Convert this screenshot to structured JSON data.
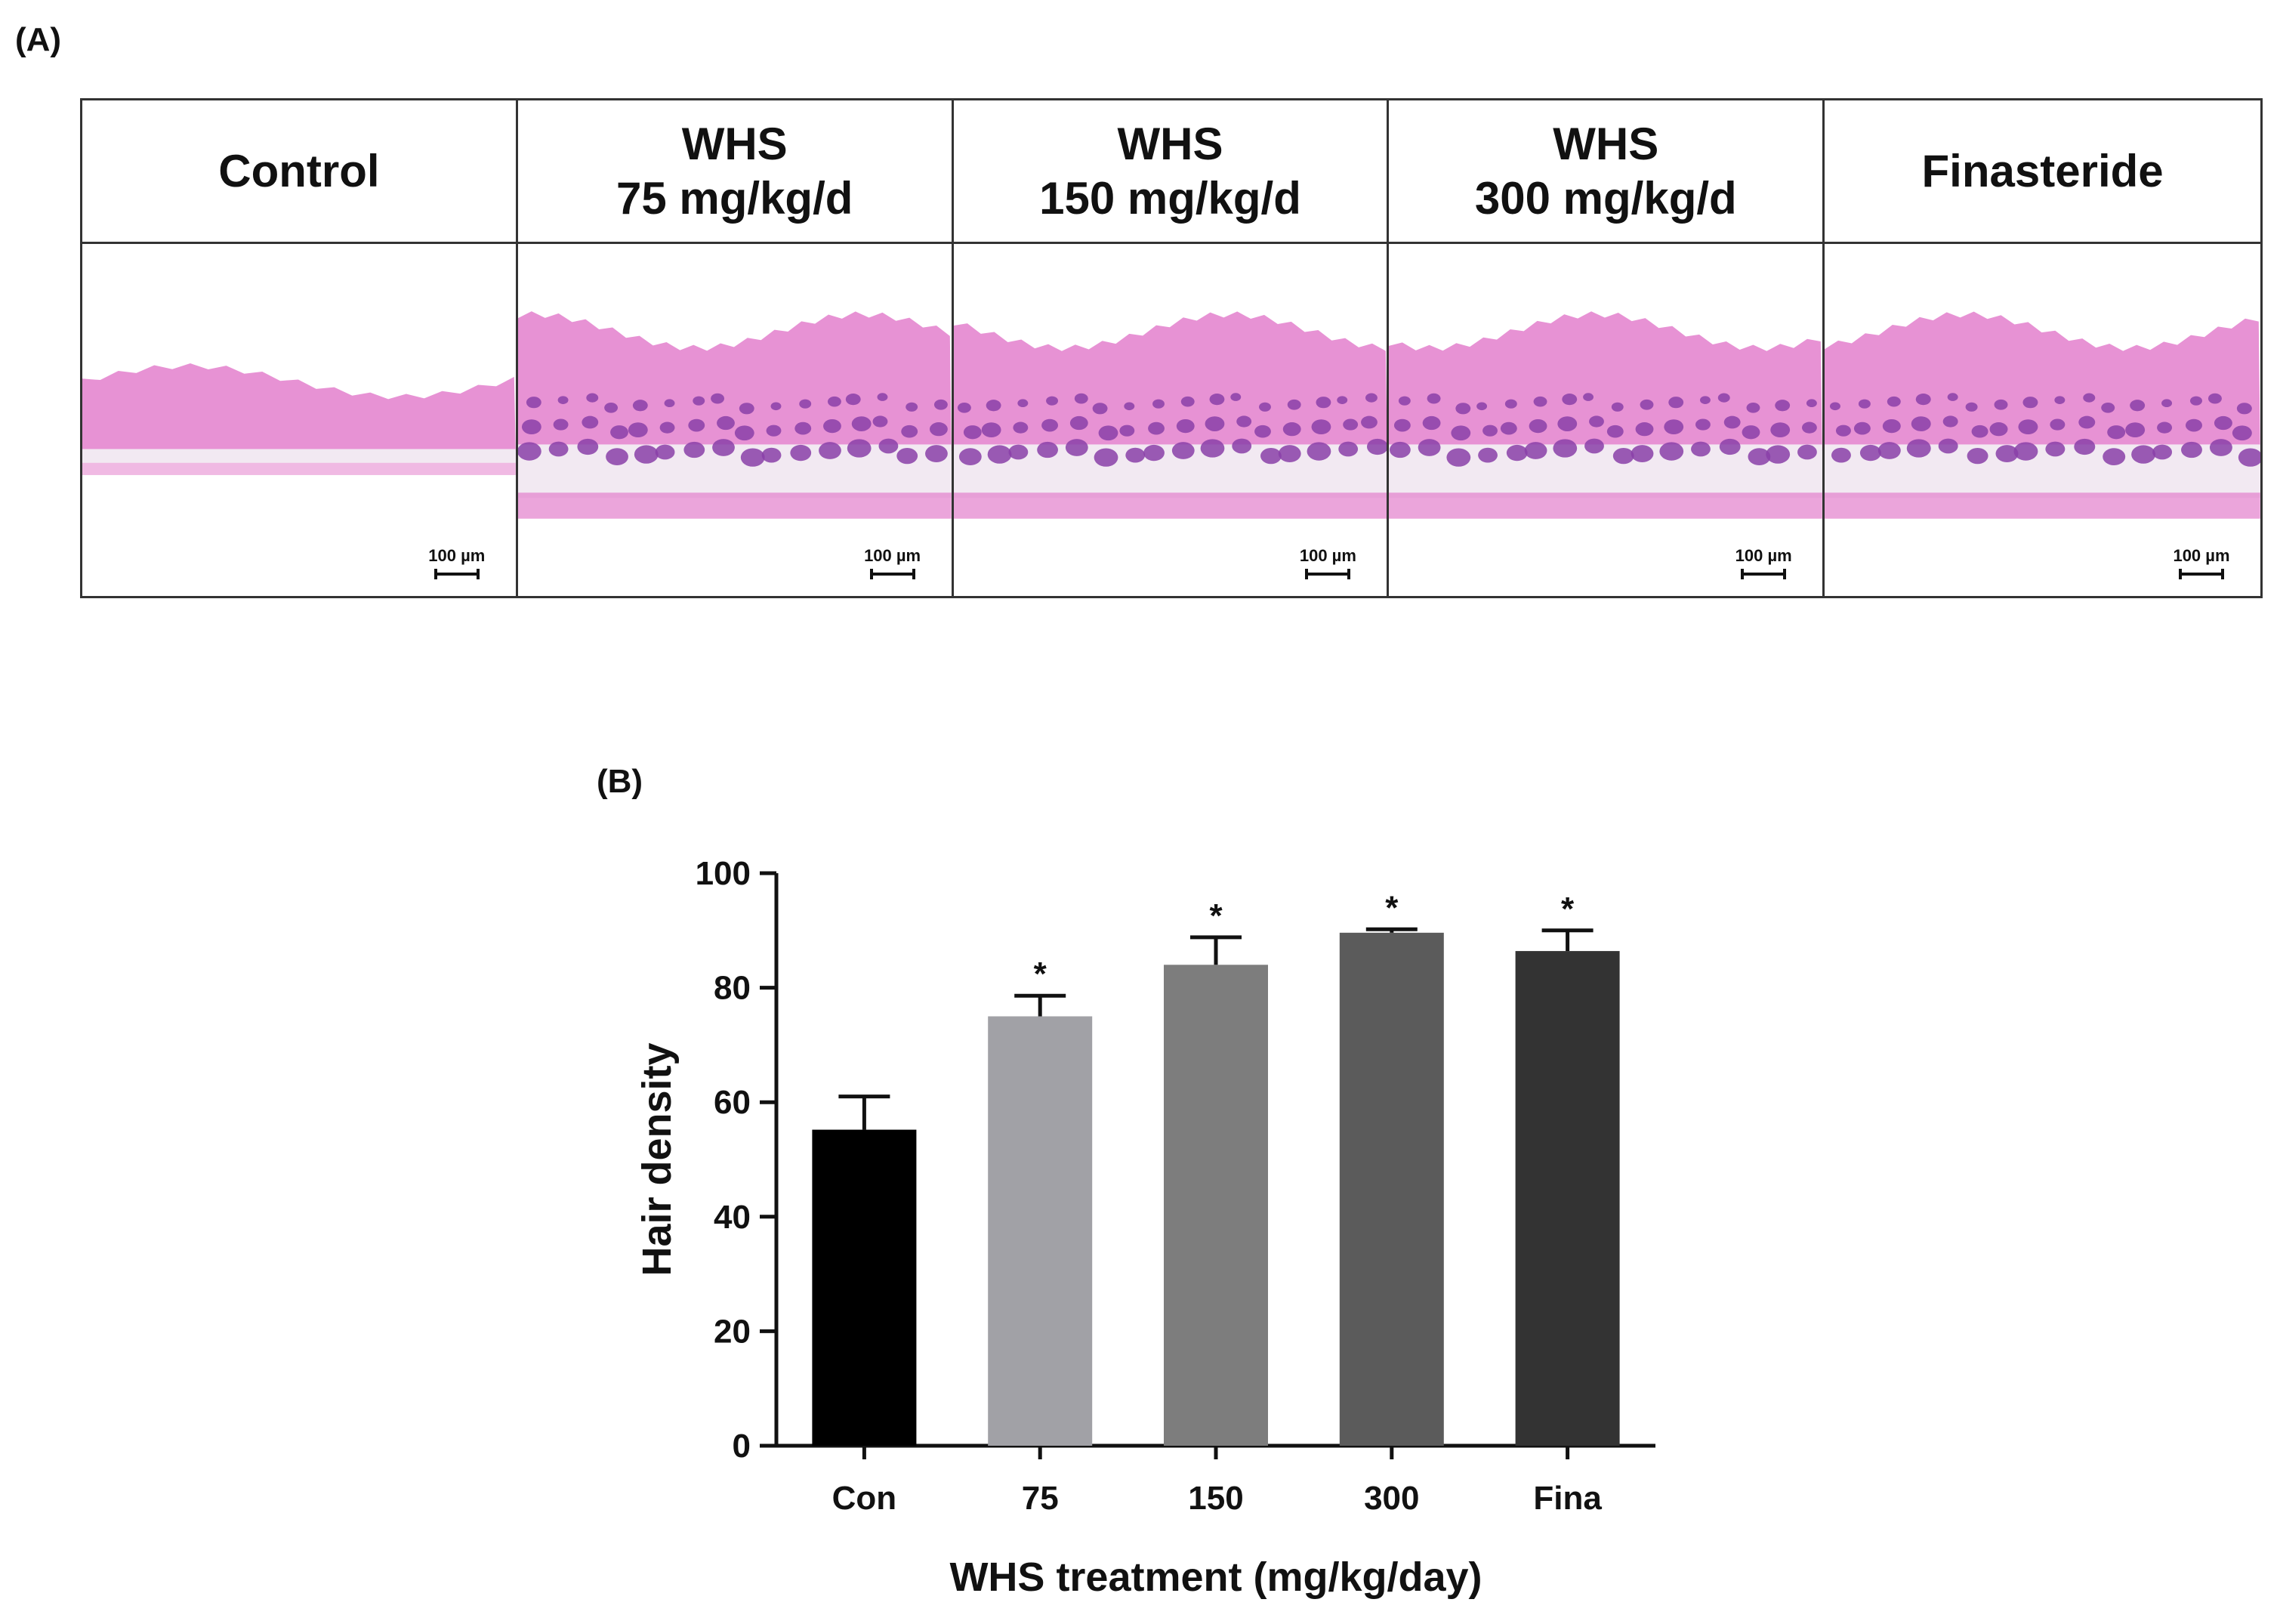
{
  "panel_a": {
    "label": "(A)",
    "columns": [
      {
        "title": "Control",
        "scale": "100 µm",
        "follicles": 0
      },
      {
        "title": "WHS\n75 mg/kg/d",
        "scale": "100 µm",
        "follicles": 1
      },
      {
        "title": "WHS\n150 mg/kg/d",
        "scale": "100 µm",
        "follicles": 1
      },
      {
        "title": "WHS\n300 mg/kg/d",
        "scale": "100 µm",
        "follicles": 1
      },
      {
        "title": "Finasteride",
        "scale": "100 µm",
        "follicles": 1
      }
    ],
    "colors": {
      "tissue": "#e37fcc",
      "follicle": "#8a3fa8",
      "fat": "#f2e9f2"
    }
  },
  "panel_b": {
    "label": "(B)"
  },
  "chart_data": {
    "type": "bar",
    "categories": [
      "Con",
      "75",
      "150",
      "300",
      "Fina"
    ],
    "values": [
      55.2,
      75.0,
      84.0,
      89.6,
      86.4
    ],
    "errors": [
      5.8,
      3.6,
      4.8,
      0.6,
      3.6
    ],
    "significance": [
      "",
      "*",
      "*",
      "*",
      "*"
    ],
    "bar_colors": [
      "#000000",
      "#a1a1a6",
      "#7d7d7d",
      "#5b5b5b",
      "#333333"
    ],
    "title": "",
    "xlabel": "WHS treatment (mg/kg/day)",
    "ylabel": "Hair density",
    "ylim": [
      0,
      100
    ],
    "yticks": [
      0,
      20,
      40,
      60,
      80,
      100
    ],
    "grid": false
  }
}
